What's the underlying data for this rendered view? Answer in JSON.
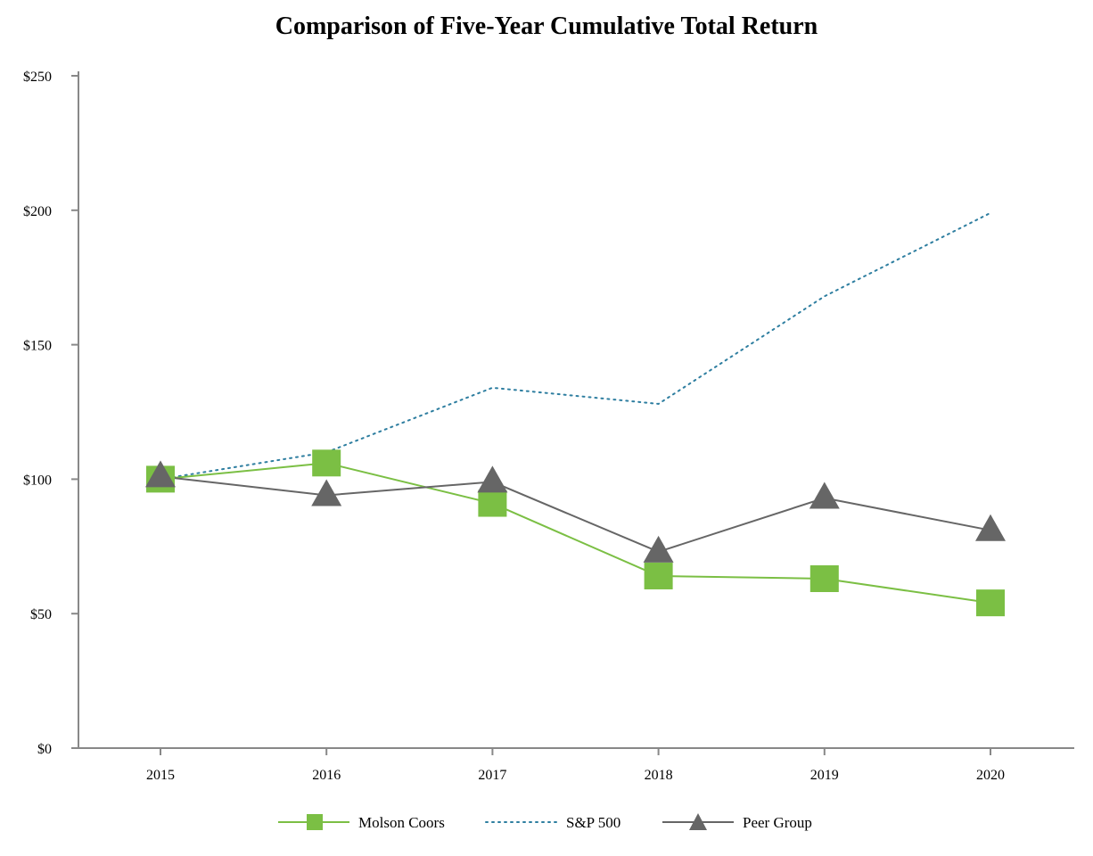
{
  "chart_data": {
    "type": "line",
    "title": "Comparison of Five-Year Cumulative Total Return",
    "xlabel": "",
    "ylabel": "",
    "categories": [
      "2015",
      "2016",
      "2017",
      "2018",
      "2019",
      "2020"
    ],
    "ylim": [
      0,
      250
    ],
    "yticks": [
      0,
      50,
      100,
      150,
      200,
      250
    ],
    "ytick_labels": [
      "$0",
      "$50",
      "$100",
      "$150",
      "$200",
      "$250"
    ],
    "grid": false,
    "legend_position": "bottom-center",
    "series": [
      {
        "name": "Molson Coors",
        "values": [
          100,
          106,
          91,
          64,
          63,
          54
        ],
        "color": "#7bbf44",
        "style": "solid",
        "marker": "square"
      },
      {
        "name": "S&P 500",
        "values": [
          100,
          110,
          134,
          128,
          168,
          199
        ],
        "color": "#2e7ea0",
        "style": "dotted",
        "marker": "none"
      },
      {
        "name": "Peer Group",
        "values": [
          101,
          94,
          99,
          73,
          93,
          81
        ],
        "color": "#666666",
        "style": "solid",
        "marker": "triangle"
      }
    ]
  }
}
